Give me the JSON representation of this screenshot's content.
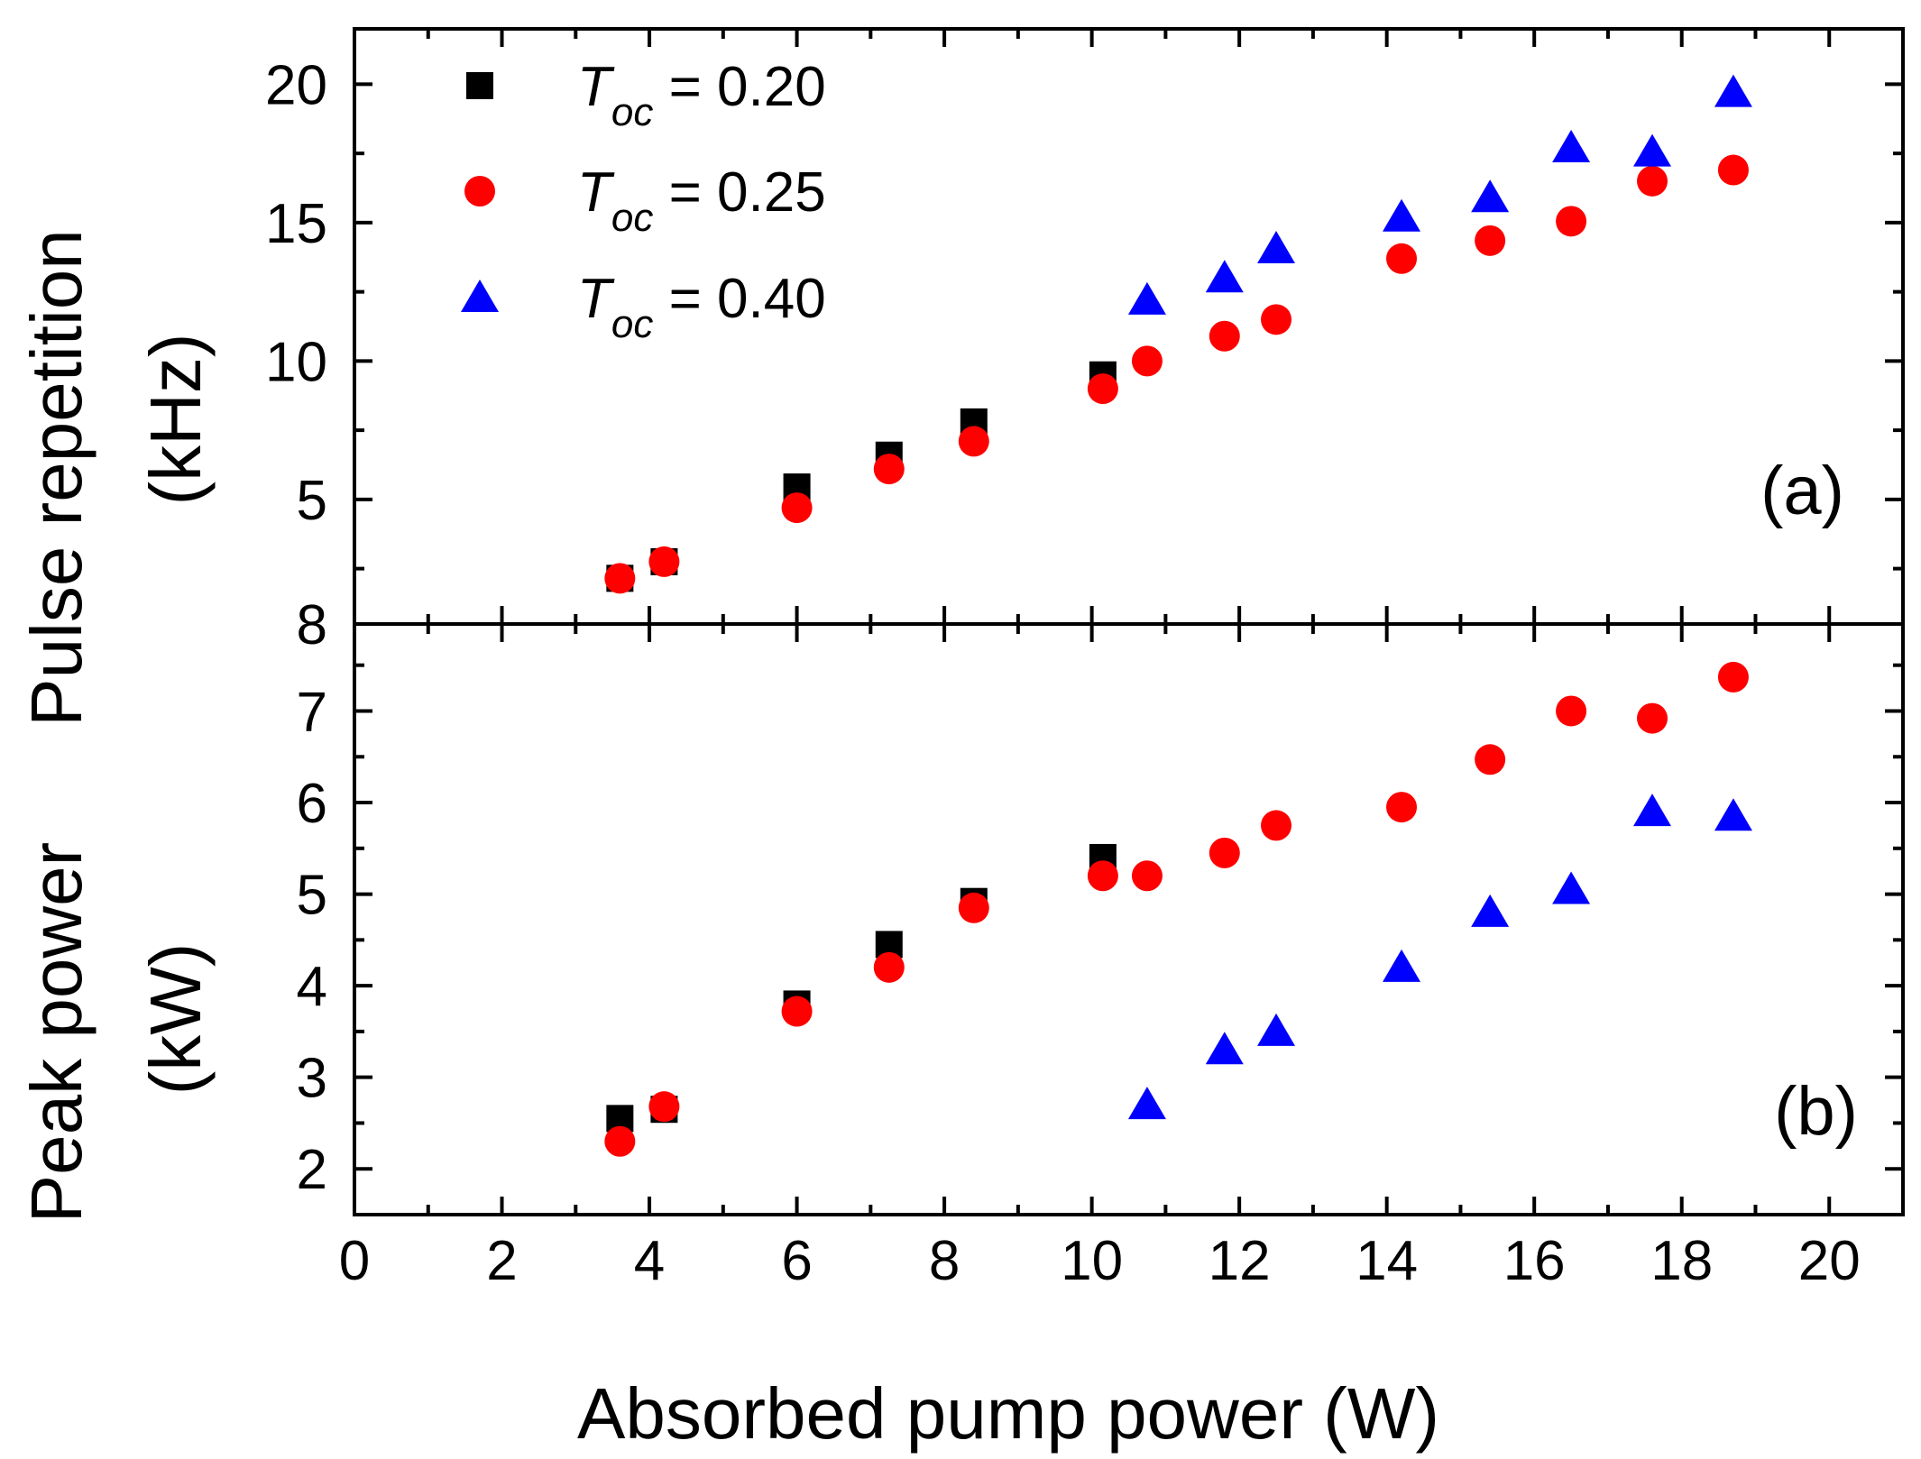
{
  "chart_data": [
    {
      "panel": "(a)",
      "type": "scatter",
      "xlabel": "Absorbed pump power (W)",
      "ylabel": [
        "Pulse repetition",
        "(kHz)"
      ],
      "xlim": [
        0,
        21
      ],
      "ylim": [
        0.5,
        22
      ],
      "xticks": [
        0,
        2,
        4,
        6,
        8,
        10,
        12,
        14,
        16,
        18,
        20
      ],
      "yticks": [
        5,
        10,
        15,
        20
      ],
      "y_zero_label": "8",
      "series": [
        {
          "name": "T_oc = 0.20",
          "marker": "square",
          "color": "#000000",
          "x": [
            3.6,
            4.2,
            6.0,
            7.25,
            8.4,
            10.15
          ],
          "y": [
            2.15,
            2.75,
            5.45,
            6.6,
            7.8,
            9.5
          ]
        },
        {
          "name": "T_oc = 0.25",
          "marker": "circle",
          "color": "#ff0000",
          "x": [
            3.6,
            4.2,
            6.0,
            7.25,
            8.4,
            10.15,
            10.75,
            11.8,
            12.5,
            14.2,
            15.4,
            16.5,
            17.6,
            18.7
          ],
          "y": [
            2.15,
            2.75,
            4.7,
            6.1,
            7.1,
            9.0,
            10.0,
            10.9,
            11.5,
            13.7,
            14.35,
            15.05,
            16.5,
            16.9
          ]
        },
        {
          "name": "T_oc = 0.40",
          "marker": "triangle",
          "color": "#0000ff",
          "x": [
            10.75,
            11.8,
            12.5,
            14.2,
            15.4,
            16.5,
            17.6,
            18.7
          ],
          "y": [
            12.2,
            13.0,
            14.05,
            15.2,
            15.9,
            17.7,
            17.55,
            19.7
          ]
        }
      ]
    },
    {
      "panel": "(b)",
      "type": "scatter",
      "xlabel": "Absorbed pump power (W)",
      "ylabel": [
        "Peak power",
        "(kW)"
      ],
      "xlim": [
        0,
        21
      ],
      "ylim": [
        1.5,
        7.95
      ],
      "xticks": [
        0,
        2,
        4,
        6,
        8,
        10,
        12,
        14,
        16,
        18,
        20
      ],
      "yticks": [
        2,
        3,
        4,
        5,
        6,
        7
      ],
      "series": [
        {
          "name": "T_oc = 0.20",
          "marker": "square",
          "color": "#000000",
          "x": [
            3.6,
            4.2,
            6.0,
            7.25,
            8.4,
            10.15
          ],
          "y": [
            2.55,
            2.65,
            3.8,
            4.45,
            4.92,
            5.4
          ]
        },
        {
          "name": "T_oc = 0.25",
          "marker": "circle",
          "color": "#ff0000",
          "x": [
            3.6,
            4.2,
            6.0,
            7.25,
            8.4,
            10.15,
            10.75,
            11.8,
            12.5,
            14.2,
            15.4,
            16.5,
            17.6,
            18.7
          ],
          "y": [
            2.3,
            2.68,
            3.72,
            4.2,
            4.85,
            5.2,
            5.2,
            5.45,
            5.75,
            5.95,
            6.47,
            7.0,
            6.92,
            7.37
          ]
        },
        {
          "name": "T_oc = 0.40",
          "marker": "triangle",
          "color": "#0000ff",
          "x": [
            10.75,
            11.8,
            12.5,
            14.2,
            15.4,
            16.5,
            17.6,
            18.7
          ],
          "y": [
            2.7,
            3.3,
            3.5,
            4.2,
            4.8,
            5.05,
            5.9,
            5.85
          ]
        }
      ]
    }
  ],
  "legend": [
    {
      "marker": "square",
      "color": "#000000",
      "symbol": "T",
      "sub": "oc",
      "value": " = 0.20"
    },
    {
      "marker": "circle",
      "color": "#ff0000",
      "symbol": "T",
      "sub": "oc",
      "value": " = 0.25"
    },
    {
      "marker": "triangle",
      "color": "#0000ff",
      "symbol": "T",
      "sub": "oc",
      "value": " = 0.40"
    }
  ],
  "legend_placement": "top-left of panel (a)"
}
